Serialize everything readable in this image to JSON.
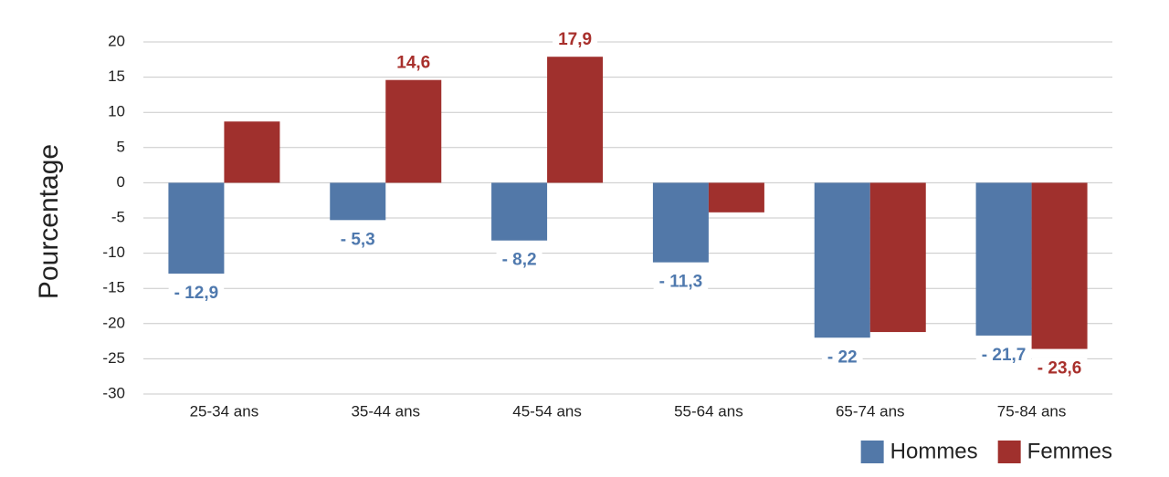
{
  "chart_data": {
    "type": "bar",
    "y_label": "Pourcentage",
    "categories": [
      "25-34 ans",
      "35-44 ans",
      "45-54 ans",
      "55-64 ans",
      "65-74 ans",
      "75-84 ans"
    ],
    "series": [
      {
        "name": "Hommes",
        "color": "#5278a8",
        "label_color": "#4f79ae",
        "values": [
          -12.9,
          -5.3,
          -8.2,
          -11.3,
          -22,
          -21.7
        ],
        "value_labels": [
          "- 12,9",
          "- 5,3",
          "- 8,2",
          "- 11,3",
          "- 22",
          "- 21,7"
        ]
      },
      {
        "name": "Femmes",
        "color": "#a0302d",
        "label_color": "#a8302c",
        "values": [
          8.7,
          14.6,
          17.9,
          -4.2,
          -21.2,
          -23.6
        ],
        "value_labels": [
          null,
          "14,6",
          "17,9",
          null,
          null,
          "- 23,6"
        ]
      }
    ],
    "ylim": [
      -30,
      20
    ],
    "yticks": [
      -30,
      -25,
      -20,
      -15,
      -10,
      -5,
      0,
      5,
      10,
      15,
      20
    ],
    "grid": true,
    "legend": "bottom-right"
  }
}
